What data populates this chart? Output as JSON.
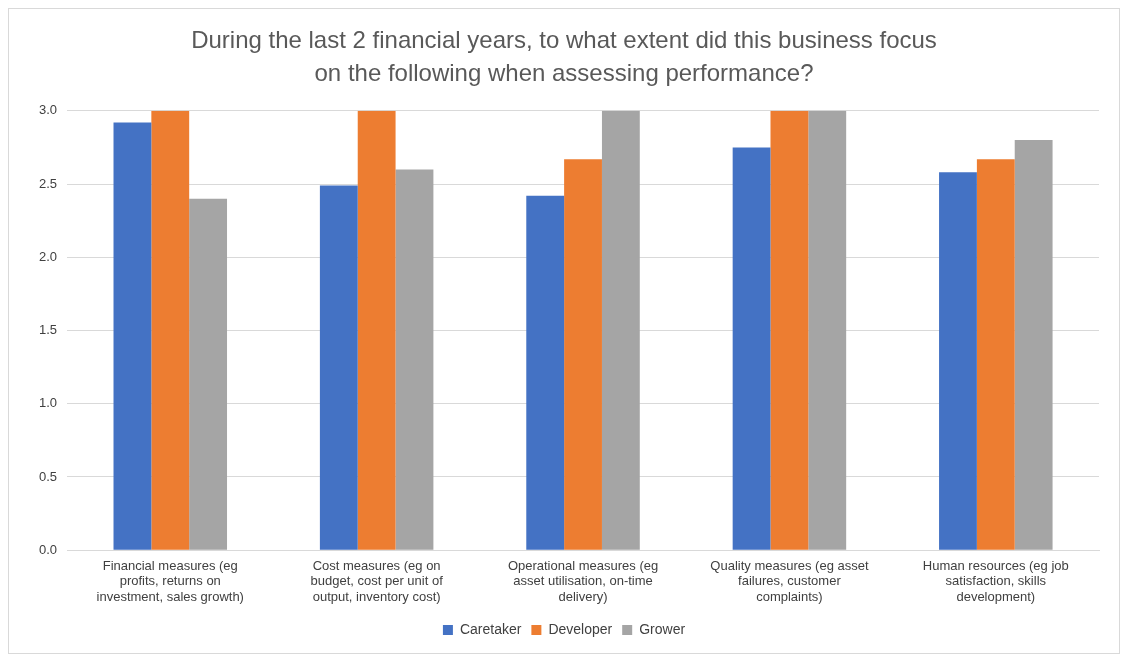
{
  "chart_data": {
    "type": "bar",
    "title": "During the last 2 financial years, to what extent did this business focus on the following when assessing performance?",
    "categories": [
      "Financial measures (eg profits, returns on investment, sales growth)",
      "Cost measures (eg on budget, cost per unit of output, inventory cost)",
      "Operational measures (eg asset utilisation, on-time delivery)",
      "Quality measures (eg asset failures, customer complaints)",
      "Human resources (eg job satisfaction, skills development)"
    ],
    "series": [
      {
        "name": "Caretaker",
        "color": "#4472c4",
        "values": [
          2.92,
          2.49,
          2.42,
          2.75,
          2.58
        ]
      },
      {
        "name": "Developer",
        "color": "#ed7d31",
        "values": [
          3.0,
          3.0,
          2.67,
          3.0,
          2.67
        ]
      },
      {
        "name": "Grower",
        "color": "#a5a5a5",
        "values": [
          2.4,
          2.6,
          3.0,
          3.0,
          2.8
        ]
      }
    ],
    "ylim": [
      0,
      3.0
    ],
    "yticks": [
      {
        "value": 0,
        "label": "0.0"
      },
      {
        "value": 0.5,
        "label": "0.5"
      },
      {
        "value": 1,
        "label": "1.0"
      },
      {
        "value": 1.5,
        "label": "1.5"
      },
      {
        "value": 2,
        "label": "2.0"
      },
      {
        "value": 2.5,
        "label": "2.5"
      },
      {
        "value": 3,
        "label": "3.0"
      }
    ],
    "grid": "y",
    "legend": "bottom"
  }
}
